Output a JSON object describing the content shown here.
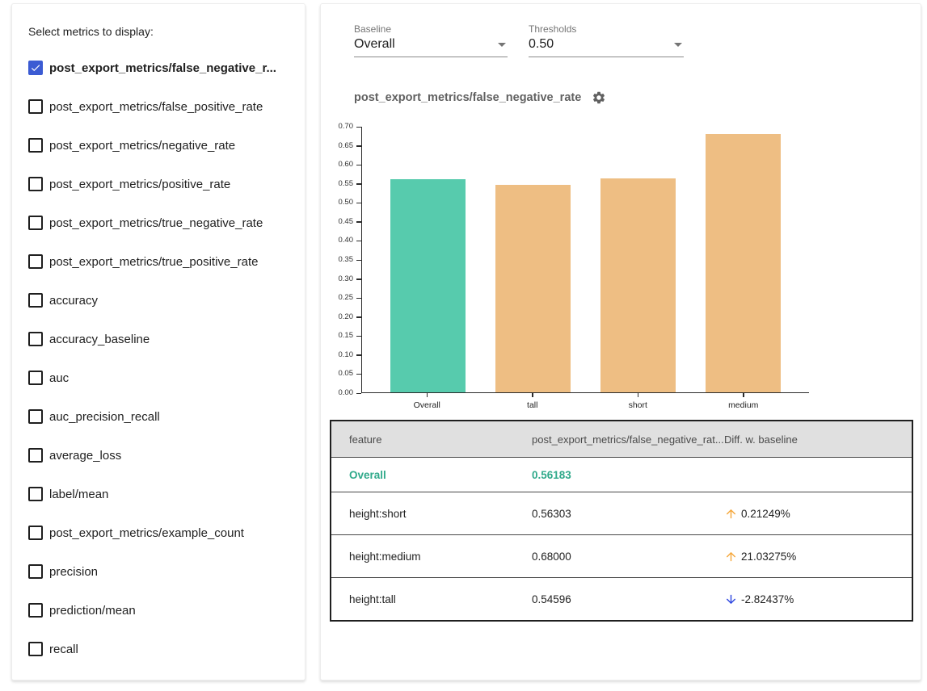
{
  "sidebar": {
    "title": "Select metrics to display:",
    "checkbox_checked_color": "#3b5bd3",
    "items": [
      {
        "label": "post_export_metrics/false_negative_r...",
        "checked": true
      },
      {
        "label": "post_export_metrics/false_positive_rate",
        "checked": false
      },
      {
        "label": "post_export_metrics/negative_rate",
        "checked": false
      },
      {
        "label": "post_export_metrics/positive_rate",
        "checked": false
      },
      {
        "label": "post_export_metrics/true_negative_rate",
        "checked": false
      },
      {
        "label": "post_export_metrics/true_positive_rate",
        "checked": false
      },
      {
        "label": "accuracy",
        "checked": false
      },
      {
        "label": "accuracy_baseline",
        "checked": false
      },
      {
        "label": "auc",
        "checked": false
      },
      {
        "label": "auc_precision_recall",
        "checked": false
      },
      {
        "label": "average_loss",
        "checked": false
      },
      {
        "label": "label/mean",
        "checked": false
      },
      {
        "label": "post_export_metrics/example_count",
        "checked": false
      },
      {
        "label": "precision",
        "checked": false
      },
      {
        "label": "prediction/mean",
        "checked": false
      },
      {
        "label": "recall",
        "checked": false
      }
    ]
  },
  "controls": {
    "baseline": {
      "label": "Baseline",
      "value": "Overall"
    },
    "thresholds": {
      "label": "Thresholds",
      "value": "0.50"
    }
  },
  "chart": {
    "title": "post_export_metrics/false_negative_rate"
  },
  "chart_data": {
    "type": "bar",
    "categories": [
      "Overall",
      "tall",
      "short",
      "medium"
    ],
    "values": [
      0.56183,
      0.54596,
      0.56303,
      0.68
    ],
    "title": "post_export_metrics/false_negative_rate",
    "xlabel": "",
    "ylabel": "",
    "ylim": [
      0,
      0.7
    ],
    "ytick_step": 0.05,
    "grid": false,
    "legend": "none",
    "bar_colors": [
      "#57cbad",
      "#eebe83",
      "#eebe83",
      "#eebe83"
    ],
    "baseline_color": "#57cbad",
    "slice_color": "#eebe83"
  },
  "table": {
    "columns": [
      "feature",
      "post_export_metrics/false_negative_rat...",
      "Diff. w. baseline"
    ],
    "rows": [
      {
        "feature": "Overall",
        "value": "0.56183",
        "diff": "",
        "direction": "",
        "baseline": true
      },
      {
        "feature": "height:short",
        "value": "0.56303",
        "diff": "0.21249%",
        "direction": "up",
        "baseline": false
      },
      {
        "feature": "height:medium",
        "value": "0.68000",
        "diff": "21.03275%",
        "direction": "up",
        "baseline": false
      },
      {
        "feature": "height:tall",
        "value": "0.54596",
        "diff": "-2.82437%",
        "direction": "down",
        "baseline": false
      }
    ],
    "colors": {
      "baseline_text": "#2fa98a",
      "up_arrow": "#f5a73b",
      "down_arrow": "#2c45e0"
    }
  }
}
